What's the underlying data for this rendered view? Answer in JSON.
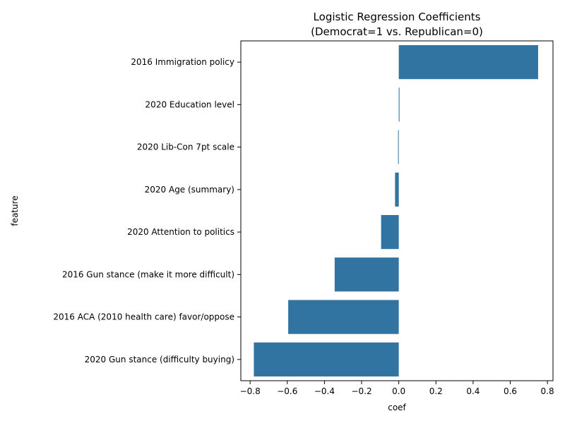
{
  "chart_data": {
    "type": "bar",
    "orientation": "horizontal",
    "title": "Logistic Regression Coefficients",
    "subtitle": "(Democrat=1 vs. Republican=0)",
    "xlabel": "coef",
    "ylabel": "feature",
    "xlim": [
      -0.85,
      0.83
    ],
    "x_ticks": [
      -0.8,
      -0.6,
      -0.4,
      -0.2,
      0.0,
      0.2,
      0.4,
      0.6,
      0.8
    ],
    "x_tick_labels": [
      "−0.8",
      "−0.6",
      "−0.4",
      "−0.2",
      "0.0",
      "0.2",
      "0.4",
      "0.6",
      "0.8"
    ],
    "grid": false,
    "bar_color": "#3274a1",
    "categories": [
      "2016 Immigration policy",
      "2020 Education level",
      "2020 Lib-Con 7pt scale",
      "2020 Age (summary)",
      "2020 Attention to politics",
      "2016 Gun stance (make it more difficult)",
      "2016 ACA (2010 health care) favor/oppose",
      "2020 Gun stance (difficulty buying)"
    ],
    "values": [
      0.75,
      0.004,
      -0.003,
      -0.02,
      -0.095,
      -0.345,
      -0.595,
      -0.78
    ]
  }
}
